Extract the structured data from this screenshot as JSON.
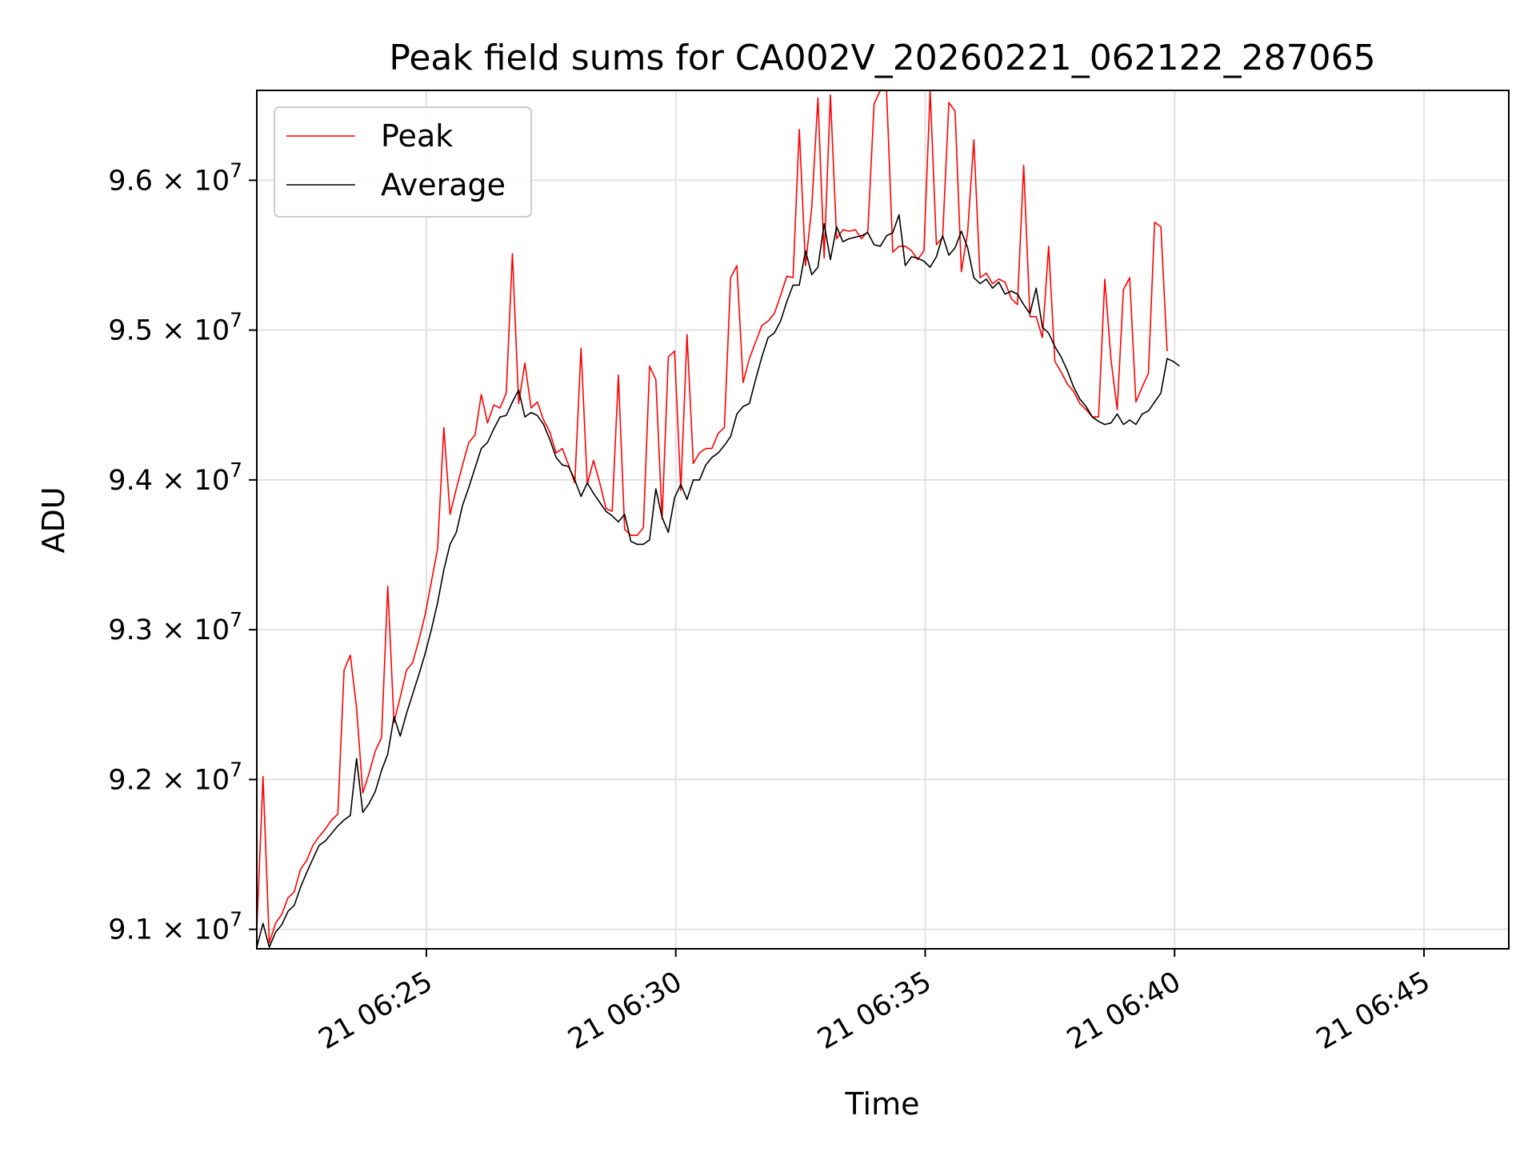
{
  "chart_data": {
    "type": "line",
    "title": "Peak field sums for CA002V_20260221_062122_287065",
    "xlabel": "Time",
    "ylabel": "ADU",
    "ylim": [
      90870000.0,
      96600000.0
    ],
    "xlim_minutes": [
      21.6,
      46.7
    ],
    "grid": true,
    "legend_position": "upper-left",
    "x_ticks": [
      {
        "value": 25,
        "label": "21 06:25"
      },
      {
        "value": 30,
        "label": "21 06:30"
      },
      {
        "value": 35,
        "label": "21 06:35"
      },
      {
        "value": 40,
        "label": "21 06:40"
      },
      {
        "value": 45,
        "label": "21 06:45"
      }
    ],
    "y_ticks": [
      {
        "value": 91000000.0,
        "mantissa": "9.1",
        "base": "10",
        "exponent": "7"
      },
      {
        "value": 92000000.0,
        "mantissa": "9.2",
        "base": "10",
        "exponent": "7"
      },
      {
        "value": 93000000.0,
        "mantissa": "9.3",
        "base": "10",
        "exponent": "7"
      },
      {
        "value": 94000000.0,
        "mantissa": "9.4",
        "base": "10",
        "exponent": "7"
      },
      {
        "value": 95000000.0,
        "mantissa": "9.5",
        "base": "10",
        "exponent": "7"
      },
      {
        "value": 96000000.0,
        "mantissa": "9.6",
        "base": "10",
        "exponent": "7"
      }
    ],
    "times_start": 21.6,
    "times_step": 0.125,
    "series": [
      {
        "name": "Peak",
        "color": "#ff0000",
        "values": [
          91000000.0,
          92020000.0,
          90910000.0,
          91040000.0,
          91100000.0,
          91210000.0,
          91250000.0,
          91400000.0,
          91460000.0,
          91560000.0,
          91620000.0,
          91670000.0,
          91730000.0,
          91770000.0,
          92730000.0,
          92830000.0,
          92480000.0,
          91910000.0,
          92040000.0,
          92190000.0,
          92280000.0,
          93290000.0,
          92380000.0,
          92550000.0,
          92730000.0,
          92780000.0,
          92930000.0,
          93100000.0,
          93320000.0,
          93540000.0,
          94350000.0,
          93770000.0,
          93940000.0,
          94100000.0,
          94250000.0,
          94300000.0,
          94570000.0,
          94380000.0,
          94500000.0,
          94480000.0,
          94580000.0,
          95510000.0,
          94510000.0,
          94780000.0,
          94480000.0,
          94520000.0,
          94400000.0,
          94320000.0,
          94180000.0,
          94210000.0,
          94100000.0,
          93980000.0,
          94880000.0,
          93970000.0,
          94130000.0,
          93980000.0,
          93810000.0,
          93790000.0,
          94700000.0,
          93670000.0,
          93630000.0,
          93630000.0,
          93680000.0,
          94760000.0,
          94670000.0,
          93740000.0,
          94820000.0,
          94860000.0,
          93930000.0,
          94970000.0,
          94110000.0,
          94180000.0,
          94210000.0,
          94210000.0,
          94310000.0,
          94350000.0,
          95350000.0,
          95430000.0,
          94650000.0,
          94810000.0,
          94920000.0,
          95030000.0,
          95060000.0,
          95110000.0,
          95230000.0,
          95360000.0,
          95350000.0,
          96340000.0,
          95430000.0,
          95820000.0,
          96550000.0,
          95480000.0,
          96570000.0,
          95610000.0,
          95670000.0,
          95660000.0,
          95670000.0,
          95610000.0,
          95660000.0,
          96510000.0,
          96600000.0,
          96600000.0,
          95520000.0,
          95560000.0,
          95560000.0,
          95530000.0,
          95470000.0,
          95530000.0,
          96600000.0,
          95570000.0,
          95620000.0,
          96520000.0,
          96460000.0,
          95390000.0,
          95650000.0,
          96270000.0,
          95350000.0,
          95380000.0,
          95310000.0,
          95340000.0,
          95320000.0,
          95210000.0,
          95170000.0,
          96100000.0,
          95090000.0,
          95090000.0,
          94950000.0,
          95560000.0,
          94790000.0,
          94720000.0,
          94640000.0,
          94590000.0,
          94510000.0,
          94470000.0,
          94420000.0,
          94420000.0,
          95340000.0,
          94800000.0,
          94470000.0,
          95270000.0,
          95350000.0,
          94520000.0,
          94620000.0,
          94710000.0,
          95720000.0,
          95690000.0,
          94860000.0
        ]
      },
      {
        "name": "Average",
        "color": "#000000",
        "values": [
          90880000.0,
          91040000.0,
          90880000.0,
          90980000.0,
          91030000.0,
          91120000.0,
          91160000.0,
          91280000.0,
          91380000.0,
          91470000.0,
          91560000.0,
          91590000.0,
          91640000.0,
          91690000.0,
          91730000.0,
          91760000.0,
          92140000.0,
          91780000.0,
          91840000.0,
          91920000.0,
          92060000.0,
          92170000.0,
          92420000.0,
          92290000.0,
          92440000.0,
          92570000.0,
          92700000.0,
          92840000.0,
          93000000.0,
          93180000.0,
          93400000.0,
          93570000.0,
          93650000.0,
          93830000.0,
          93950000.0,
          94080000.0,
          94210000.0,
          94250000.0,
          94340000.0,
          94420000.0,
          94430000.0,
          94520000.0,
          94600000.0,
          94420000.0,
          94450000.0,
          94430000.0,
          94370000.0,
          94270000.0,
          94150000.0,
          94100000.0,
          94090000.0,
          94000000.0,
          93890000.0,
          93980000.0,
          93910000.0,
          93850000.0,
          93790000.0,
          93760000.0,
          93720000.0,
          93770000.0,
          93590000.0,
          93570000.0,
          93570000.0,
          93600000.0,
          93940000.0,
          93750000.0,
          93650000.0,
          93880000.0,
          93970000.0,
          93870000.0,
          94000000.0,
          94000000.0,
          94100000.0,
          94150000.0,
          94180000.0,
          94230000.0,
          94290000.0,
          94440000.0,
          94490000.0,
          94510000.0,
          94670000.0,
          94820000.0,
          94950000.0,
          94980000.0,
          95060000.0,
          95190000.0,
          95300000.0,
          95300000.0,
          95530000.0,
          95370000.0,
          95420000.0,
          95710000.0,
          95470000.0,
          95690000.0,
          95590000.0,
          95610000.0,
          95620000.0,
          95630000.0,
          95650000.0,
          95570000.0,
          95560000.0,
          95630000.0,
          95650000.0,
          95770000.0,
          95430000.0,
          95490000.0,
          95480000.0,
          95460000.0,
          95420000.0,
          95490000.0,
          95630000.0,
          95500000.0,
          95550000.0,
          95660000.0,
          95550000.0,
          95350000.0,
          95310000.0,
          95340000.0,
          95280000.0,
          95320000.0,
          95240000.0,
          95260000.0,
          95240000.0,
          95170000.0,
          95110000.0,
          95280000.0,
          95020000.0,
          94980000.0,
          94890000.0,
          94820000.0,
          94730000.0,
          94620000.0,
          94540000.0,
          94490000.0,
          94420000.0,
          94390000.0,
          94370000.0,
          94380000.0,
          94440000.0,
          94370000.0,
          94400000.0,
          94370000.0,
          94440000.0,
          94460000.0,
          94520000.0,
          94580000.0,
          94810000.0,
          94790000.0,
          94760000.0
        ]
      }
    ]
  }
}
